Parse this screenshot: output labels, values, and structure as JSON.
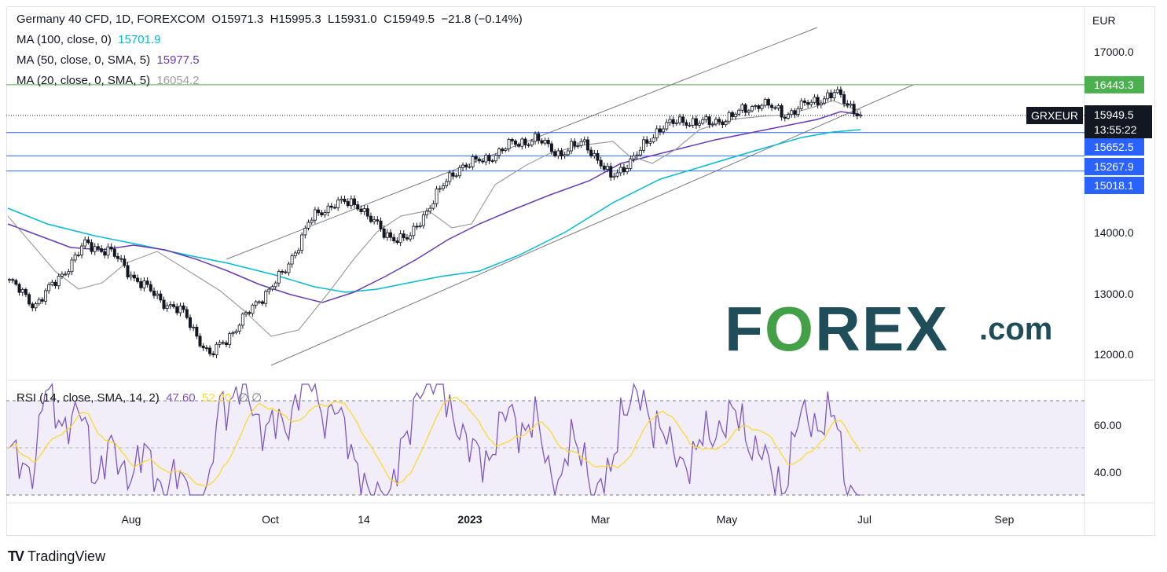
{
  "header": {
    "symbol": "Germany 40 CFD, 1D, FOREXCOM",
    "open": "O15971.3",
    "high": "H15995.3",
    "low": "L15931.0",
    "close": "C15949.5",
    "change": "−21.8 (−0.14%)",
    "currency": "EUR"
  },
  "indicators": [
    {
      "label": "MA (100, close, 0)",
      "value": "15701.9",
      "color": "#00bcd4"
    },
    {
      "label": "MA (50, close, 0, SMA, 5)",
      "value": "15977.5",
      "color": "#673ab7"
    },
    {
      "label": "MA (20, close, 0, SMA, 5)",
      "value": "16054.2",
      "color": "#9e9e9e"
    }
  ],
  "price_tag": {
    "ticker": "GRXEUR",
    "price": "15949.5",
    "countdown": "13:55:22"
  },
  "levels": [
    {
      "value": 16443.3,
      "label": "16443.3",
      "color": "#4caf50"
    },
    {
      "value": 15652.5,
      "label": "15652.5",
      "color": "#2962ff"
    },
    {
      "value": 15267.9,
      "label": "15267.9",
      "color": "#2962ff"
    },
    {
      "value": 15018.1,
      "label": "15018.1",
      "color": "#2962ff"
    }
  ],
  "rsi": {
    "label": "RSI (14, close, SMA, 14, 2)",
    "rsi_value": "47.60",
    "sma_value": "52.20",
    "extra": "∅  ∅",
    "line_color": "#7e57c2",
    "sma_color": "#fdd835",
    "axis_ticks": [
      "60.00",
      "40.00"
    ]
  },
  "price_axis_ticks": [
    "17000.0",
    "14000.0",
    "13000.0",
    "12000.0"
  ],
  "time_axis_ticks": [
    "Aug",
    "Oct",
    "14",
    "2023",
    "Mar",
    "May",
    "Jul",
    "Sep"
  ],
  "watermark": {
    "brand": "FOREX",
    "suffix": ".com"
  },
  "footer": {
    "brand": "TradingView",
    "logo": "TV"
  },
  "chart_data": {
    "type": "line",
    "title": "Germany 40 CFD, 1D, FOREXCOM",
    "x": [
      "2022-07-05",
      "2022-07-15",
      "2022-07-25",
      "2022-08-05",
      "2022-08-15",
      "2022-08-25",
      "2022-09-05",
      "2022-09-15",
      "2022-09-29",
      "2022-10-10",
      "2022-10-20",
      "2022-10-31",
      "2022-11-10",
      "2022-11-21",
      "2022-12-01",
      "2022-12-12",
      "2022-12-22",
      "2023-01-05",
      "2023-01-16",
      "2023-01-26",
      "2023-02-06",
      "2023-02-16",
      "2023-02-27",
      "2023-03-09",
      "2023-03-17",
      "2023-03-28",
      "2023-04-10",
      "2023-04-20",
      "2023-05-02",
      "2023-05-12",
      "2023-05-22",
      "2023-06-01",
      "2023-06-12",
      "2023-06-19",
      "2023-06-26"
    ],
    "series": [
      {
        "name": "Germany 40 CFD",
        "values": [
          13200,
          12800,
          13250,
          13800,
          13700,
          13250,
          12900,
          12650,
          11950,
          12400,
          12900,
          13350,
          14200,
          14500,
          14450,
          13950,
          13900,
          14600,
          15100,
          15200,
          15450,
          15550,
          15300,
          15500,
          14900,
          15250,
          15750,
          15850,
          15800,
          15950,
          16150,
          15950,
          16150,
          16300,
          15949.5
        ]
      }
    ],
    "ylim": [
      11800,
      17300
    ],
    "ylabel": "EUR",
    "horizontal_levels": [
      16443.3,
      15652.5,
      15267.9,
      15018.1
    ]
  }
}
